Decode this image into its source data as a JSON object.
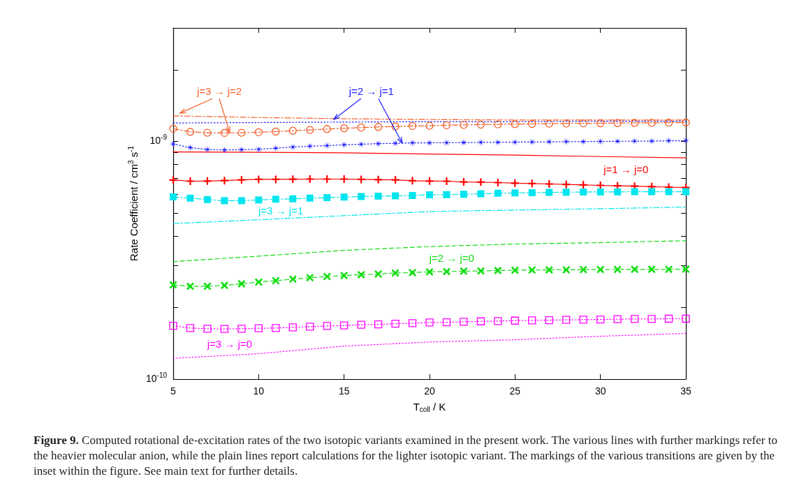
{
  "chart_data": {
    "type": "line",
    "xlabel": "T$_{coll}$ / K",
    "ylabel": "Rate Coefficient / cm$^{3}$ s$^{-1}$",
    "log": "y",
    "grid": false,
    "xlim": [
      5,
      35
    ],
    "xticks": [
      5,
      10,
      15,
      20,
      25,
      30,
      35
    ],
    "ylim": [
      1e-10,
      3e-09
    ],
    "yticks": [
      {
        "value": 1e-10,
        "label": "10$^{-10}$"
      },
      {
        "value": 2e-10,
        "label": null
      },
      {
        "value": 3e-10,
        "label": null
      },
      {
        "value": 4e-10,
        "label": null
      },
      {
        "value": 5e-10,
        "label": null
      },
      {
        "value": 6e-10,
        "label": null
      },
      {
        "value": 7e-10,
        "label": null
      },
      {
        "value": 8e-10,
        "label": null
      },
      {
        "value": 9e-10,
        "label": null
      },
      {
        "value": 1e-09,
        "label": "10$^{-9}$"
      },
      {
        "value": 2e-09,
        "label": null
      },
      {
        "value": 3e-09,
        "label": null
      }
    ],
    "series": [
      {
        "color": "#f4602a",
        "marker": "none",
        "line_style": "dashdot",
        "x": [
          5,
          10,
          15,
          20,
          25,
          30,
          35
        ],
        "values": [
          1.28e-09,
          1.26e-09,
          1.245e-09,
          1.235e-09,
          1.23e-09,
          1.23e-09,
          1.23e-09
        ]
      },
      {
        "color": "#f4602a",
        "marker": "circle",
        "line_style": "dashdot",
        "x": [
          5,
          6,
          7,
          8,
          9,
          10,
          11,
          12,
          13,
          14,
          15,
          16,
          17,
          18,
          19,
          20,
          21,
          22,
          23,
          24,
          25,
          26,
          27,
          28,
          29,
          30,
          31,
          32,
          33,
          34,
          35
        ],
        "values": [
          1.13e-09,
          1.097e-09,
          1.087e-09,
          1.085e-09,
          1.087e-09,
          1.092e-09,
          1.099e-09,
          1.109e-09,
          1.117e-09,
          1.127e-09,
          1.135e-09,
          1.143e-09,
          1.15e-09,
          1.155e-09,
          1.161e-09,
          1.163e-09,
          1.169e-09,
          1.173e-09,
          1.176e-09,
          1.179e-09,
          1.182e-09,
          1.184e-09,
          1.187e-09,
          1.189e-09,
          1.191e-09,
          1.192e-09,
          1.194e-09,
          1.196e-09,
          1.197e-09,
          1.199e-09,
          1.2e-09
        ]
      },
      {
        "color": "#1a1aff",
        "marker": "none",
        "line_style": "dotted",
        "x": [
          5,
          10,
          15,
          20,
          25,
          30,
          35
        ],
        "values": [
          1.195e-09,
          1.2e-09,
          1.205e-09,
          1.21e-09,
          1.21e-09,
          1.215e-09,
          1.215e-09
        ]
      },
      {
        "color": "#1a1aff",
        "marker": "star",
        "line_style": "dotted",
        "x": [
          5,
          6,
          7,
          8,
          9,
          10,
          11,
          12,
          13,
          14,
          15,
          16,
          17,
          18,
          19,
          20,
          21,
          22,
          23,
          24,
          25,
          26,
          27,
          28,
          29,
          30,
          31,
          32,
          33,
          34,
          35
        ],
        "values": [
          9.75e-10,
          9.41e-10,
          9.24e-10,
          9.2e-10,
          9.22e-10,
          9.26e-10,
          9.36e-10,
          9.47e-10,
          9.54e-10,
          9.6e-10,
          9.67e-10,
          9.73e-10,
          9.78e-10,
          9.82e-10,
          9.85e-10,
          9.86e-10,
          9.87e-10,
          9.89e-10,
          9.9e-10,
          9.91e-10,
          9.93e-10,
          9.94e-10,
          9.95e-10,
          9.97e-10,
          9.98e-10,
          9.99e-10,
          1.001e-09,
          1.002e-09,
          1.003e-09,
          1.005e-09,
          1.007e-09
        ]
      },
      {
        "color": "#ff0000",
        "marker": "none",
        "line_style": "solid",
        "x": [
          5,
          10,
          15,
          20,
          25,
          30,
          35
        ],
        "values": [
          9.03e-10,
          9e-10,
          8.95e-10,
          8.85e-10,
          8.75e-10,
          8.63e-10,
          8.52e-10
        ]
      },
      {
        "color": "#ff0000",
        "marker": "plus",
        "line_style": "solid",
        "x": [
          5,
          6,
          7,
          8,
          9,
          10,
          11,
          12,
          13,
          14,
          15,
          16,
          17,
          18,
          19,
          20,
          21,
          22,
          23,
          24,
          25,
          26,
          27,
          28,
          29,
          30,
          31,
          32,
          33,
          34,
          35
        ],
        "values": [
          6.88e-10,
          6.8e-10,
          6.81e-10,
          6.84e-10,
          6.89e-10,
          6.92e-10,
          6.92e-10,
          6.93e-10,
          6.94e-10,
          6.94e-10,
          6.94e-10,
          6.92e-10,
          6.9e-10,
          6.89e-10,
          6.83e-10,
          6.81e-10,
          6.8e-10,
          6.75e-10,
          6.74e-10,
          6.71e-10,
          6.67e-10,
          6.65e-10,
          6.62e-10,
          6.59e-10,
          6.56e-10,
          6.53e-10,
          6.5e-10,
          6.48e-10,
          6.45e-10,
          6.42e-10,
          6.39e-10
        ]
      },
      {
        "color": "#00e5ee",
        "marker": "square-filled",
        "line_style": "dashdot",
        "x": [
          5,
          6,
          7,
          8,
          9,
          10,
          11,
          12,
          13,
          14,
          15,
          16,
          17,
          18,
          19,
          20,
          21,
          22,
          23,
          24,
          25,
          26,
          27,
          28,
          29,
          30,
          31,
          32,
          33,
          34,
          35
        ],
        "values": [
          5.84e-10,
          5.77e-10,
          5.69e-10,
          5.63e-10,
          5.63e-10,
          5.67e-10,
          5.71e-10,
          5.73e-10,
          5.77e-10,
          5.8e-10,
          5.83e-10,
          5.86e-10,
          5.88e-10,
          5.9e-10,
          5.92e-10,
          5.96e-10,
          5.97e-10,
          5.99e-10,
          6.02e-10,
          6.05e-10,
          6.07e-10,
          6.08e-10,
          6.1e-10,
          6.11e-10,
          6.12e-10,
          6.13e-10,
          6.13e-10,
          6.14e-10,
          6.14e-10,
          6.14e-10,
          6.14e-10
        ]
      },
      {
        "color": "#00e5ee",
        "marker": "none",
        "line_style": "dashdot",
        "x": [
          5,
          10,
          15,
          20,
          25,
          30,
          35
        ],
        "values": [
          4.51e-10,
          4.68e-10,
          4.87e-10,
          5.07e-10,
          5.14e-10,
          5.21e-10,
          5.29e-10
        ]
      },
      {
        "color": "#11dd11",
        "marker": "none",
        "line_style": "dashed",
        "x": [
          5,
          10,
          15,
          20,
          25,
          30,
          35
        ],
        "values": [
          3.12e-10,
          3.29e-10,
          3.48e-10,
          3.61e-10,
          3.7e-10,
          3.75e-10,
          3.82e-10
        ]
      },
      {
        "color": "#11dd11",
        "marker": "cross",
        "line_style": "dashed",
        "x": [
          5,
          6,
          7,
          8,
          9,
          10,
          11,
          12,
          13,
          14,
          15,
          16,
          17,
          18,
          19,
          20,
          21,
          22,
          23,
          24,
          25,
          26,
          27,
          28,
          29,
          30,
          31,
          32,
          33,
          34,
          35
        ],
        "values": [
          2.49e-10,
          2.456e-10,
          2.456e-10,
          2.478e-10,
          2.518e-10,
          2.559e-10,
          2.594e-10,
          2.635e-10,
          2.671e-10,
          2.702e-10,
          2.726e-10,
          2.75e-10,
          2.769e-10,
          2.795e-10,
          2.806e-10,
          2.825e-10,
          2.835e-10,
          2.845e-10,
          2.851e-10,
          2.863e-10,
          2.87e-10,
          2.876e-10,
          2.88e-10,
          2.882e-10,
          2.886e-10,
          2.89e-10,
          2.891e-10,
          2.894e-10,
          2.894e-10,
          2.896e-10,
          2.9e-10
        ]
      },
      {
        "color": "#ff00ff",
        "marker": "square",
        "line_style": "dotted",
        "x": [
          5,
          6,
          7,
          8,
          9,
          10,
          11,
          12,
          13,
          14,
          15,
          16,
          17,
          18,
          19,
          20,
          21,
          22,
          23,
          24,
          25,
          26,
          27,
          28,
          29,
          30,
          31,
          32,
          33,
          34,
          35
        ],
        "values": [
          1.677e-10,
          1.64e-10,
          1.629e-10,
          1.626e-10,
          1.629e-10,
          1.636e-10,
          1.64e-10,
          1.651e-10,
          1.662e-10,
          1.673e-10,
          1.681e-10,
          1.692e-10,
          1.699e-10,
          1.71e-10,
          1.718e-10,
          1.73e-10,
          1.734e-10,
          1.742e-10,
          1.75e-10,
          1.754e-10,
          1.762e-10,
          1.766e-10,
          1.77e-10,
          1.775e-10,
          1.778e-10,
          1.782e-10,
          1.787e-10,
          1.791e-10,
          1.791e-10,
          1.795e-10,
          1.795e-10
        ]
      },
      {
        "color": "#ff00ff",
        "marker": "none",
        "line_style": "dotted",
        "x": [
          5,
          10,
          15,
          20,
          25,
          30,
          35
        ],
        "values": [
          1.223e-10,
          1.279e-10,
          1.377e-10,
          1.432e-10,
          1.464e-10,
          1.515e-10,
          1.556e-10
        ]
      }
    ],
    "annotations": [
      {
        "text": "j=3 → j=2",
        "x": 8.3,
        "y": 1.09e-09
      },
      {
        "text": "j=2 → j=1",
        "x": 18.4,
        "y": 9.83e-10
      },
      "j=1 → j=0",
      "j=3 → j=1",
      "j=2 → j=0",
      "j=3 → j=0",
      "Figure 9. Computed rotational de-excitation rates of the two isotopic variants examined in the present work. The various lines with further markings refer to the heavier molecular anion, while the plain lines report calculations for the lighter isotopic variant. The markings of the various transitions are given by the inset within the figure. See main text for further details."
    ]
  }
}
